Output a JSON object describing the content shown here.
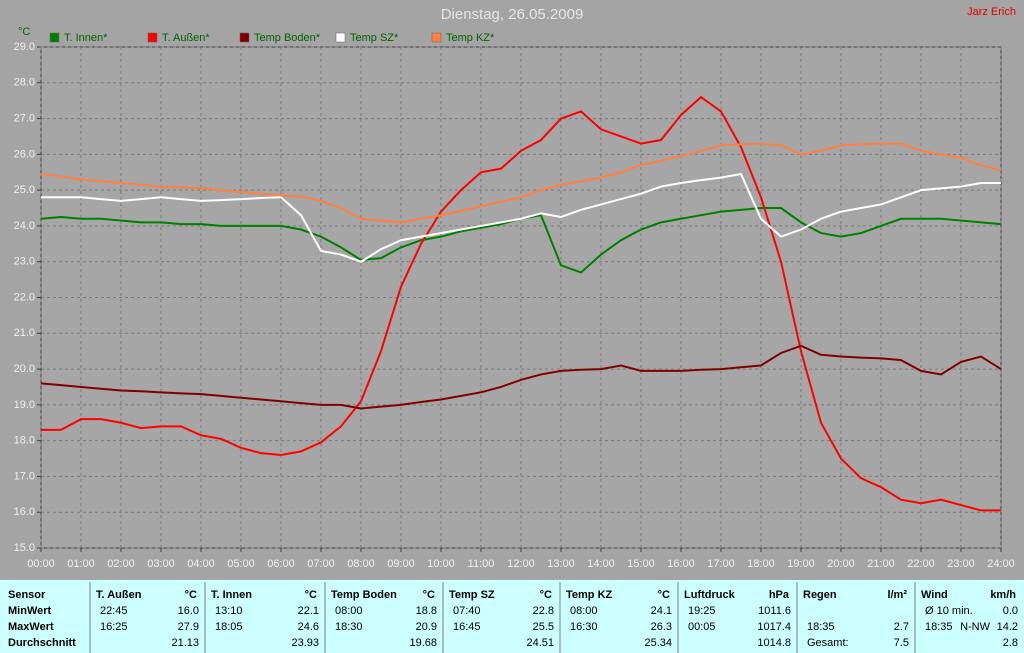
{
  "chart_data": {
    "type": "line",
    "title": "Dienstag, 26.05.2009",
    "author": "Jarz Erich",
    "y_unit": "°C",
    "x": [
      0,
      0.5,
      1,
      1.5,
      2,
      2.5,
      3,
      3.5,
      4,
      4.5,
      5,
      5.5,
      6,
      6.5,
      7,
      7.5,
      8,
      8.5,
      9,
      9.5,
      10,
      10.5,
      11,
      11.5,
      12,
      12.5,
      13,
      13.5,
      14,
      14.5,
      15,
      15.5,
      16,
      16.5,
      17,
      17.5,
      18,
      18.5,
      19,
      19.5,
      20,
      20.5,
      21,
      21.5,
      22,
      22.5,
      23,
      23.5,
      24
    ],
    "xlim": [
      0,
      24
    ],
    "xticks": [
      {
        "value": 0,
        "label": "00:00"
      },
      {
        "value": 1,
        "label": "01:00"
      },
      {
        "value": 2,
        "label": "02:00"
      },
      {
        "value": 3,
        "label": "03:00"
      },
      {
        "value": 4,
        "label": "04:00"
      },
      {
        "value": 5,
        "label": "05:00"
      },
      {
        "value": 6,
        "label": "06:00"
      },
      {
        "value": 7,
        "label": "07:00"
      },
      {
        "value": 8,
        "label": "08:00"
      },
      {
        "value": 9,
        "label": "09:00"
      },
      {
        "value": 10,
        "label": "10:00"
      },
      {
        "value": 11,
        "label": "11:00"
      },
      {
        "value": 12,
        "label": "12:00"
      },
      {
        "value": 13,
        "label": "13:00"
      },
      {
        "value": 14,
        "label": "14:00"
      },
      {
        "value": 15,
        "label": "15:00"
      },
      {
        "value": 16,
        "label": "16:00"
      },
      {
        "value": 17,
        "label": "17:00"
      },
      {
        "value": 18,
        "label": "18:00"
      },
      {
        "value": 19,
        "label": "19:00"
      },
      {
        "value": 20,
        "label": "20:00"
      },
      {
        "value": 21,
        "label": "21:00"
      },
      {
        "value": 22,
        "label": "22:00"
      },
      {
        "value": 23,
        "label": "23:00"
      },
      {
        "value": 24,
        "label": "24:00"
      }
    ],
    "ylim": [
      15,
      29
    ],
    "yticks": [
      {
        "value": 15,
        "label": "15.0"
      },
      {
        "value": 16,
        "label": "16.0"
      },
      {
        "value": 17,
        "label": "17.0"
      },
      {
        "value": 18,
        "label": "18.0"
      },
      {
        "value": 19,
        "label": "19.0"
      },
      {
        "value": 20,
        "label": "20.0"
      },
      {
        "value": 21,
        "label": "21.0"
      },
      {
        "value": 22,
        "label": "22.0"
      },
      {
        "value": 23,
        "label": "23.0"
      },
      {
        "value": 24,
        "label": "24.0"
      },
      {
        "value": 25,
        "label": "25.0"
      },
      {
        "value": 26,
        "label": "26.0"
      },
      {
        "value": 27,
        "label": "27.0"
      },
      {
        "value": 28,
        "label": "28.0"
      },
      {
        "value": 29,
        "label": "29.0"
      }
    ],
    "grid": true,
    "series": [
      {
        "name": "T. Innen*",
        "color": "#008000",
        "values": [
          24.2,
          24.25,
          24.2,
          24.2,
          24.15,
          24.1,
          24.1,
          24.05,
          24.05,
          24.0,
          24.0,
          24.0,
          24.0,
          23.9,
          23.7,
          23.4,
          23.05,
          23.1,
          23.4,
          23.6,
          23.7,
          23.85,
          23.95,
          24.05,
          24.2,
          24.3,
          22.9,
          22.7,
          23.2,
          23.6,
          23.9,
          24.1,
          24.2,
          24.3,
          24.4,
          24.45,
          24.5,
          24.5,
          24.1,
          23.8,
          23.7,
          23.8,
          24.0,
          24.2,
          24.2,
          24.2,
          24.15,
          24.1,
          24.05
        ]
      },
      {
        "name": "T. Außen*",
        "color": "#ff0000",
        "values": [
          18.3,
          18.3,
          18.6,
          18.6,
          18.5,
          18.35,
          18.4,
          18.4,
          18.15,
          18.05,
          17.8,
          17.65,
          17.6,
          17.7,
          17.95,
          18.4,
          19.1,
          20.5,
          22.3,
          23.5,
          24.4,
          25.0,
          25.5,
          25.6,
          26.1,
          26.4,
          27.0,
          27.2,
          26.7,
          26.5,
          26.3,
          26.4,
          27.1,
          27.6,
          27.2,
          26.2,
          24.8,
          23.0,
          20.5,
          18.5,
          17.5,
          16.95,
          16.7,
          16.35,
          16.25,
          16.35,
          16.2,
          16.05,
          16.05
        ]
      },
      {
        "name": "Temp Boden*",
        "color": "#800000",
        "values": [
          19.6,
          19.55,
          19.5,
          19.45,
          19.4,
          19.38,
          19.35,
          19.32,
          19.3,
          19.25,
          19.2,
          19.15,
          19.1,
          19.05,
          19.0,
          19.0,
          18.9,
          18.95,
          19.0,
          19.08,
          19.15,
          19.25,
          19.35,
          19.5,
          19.7,
          19.85,
          19.95,
          19.98,
          20.0,
          20.1,
          19.95,
          19.95,
          19.95,
          19.98,
          20.0,
          20.05,
          20.1,
          20.45,
          20.65,
          20.4,
          20.35,
          20.32,
          20.3,
          20.25,
          19.95,
          19.85,
          20.2,
          20.35,
          20.0
        ]
      },
      {
        "name": "Temp SZ*",
        "color": "#ffffff",
        "values": [
          24.8,
          24.8,
          24.8,
          24.75,
          24.7,
          24.75,
          24.8,
          24.75,
          24.7,
          24.72,
          24.75,
          24.78,
          24.8,
          24.3,
          23.3,
          23.2,
          23.0,
          23.35,
          23.6,
          23.7,
          23.8,
          23.9,
          24.0,
          24.1,
          24.2,
          24.35,
          24.25,
          24.45,
          24.6,
          24.75,
          24.9,
          25.1,
          25.2,
          25.28,
          25.35,
          25.45,
          24.2,
          23.7,
          23.9,
          24.2,
          24.4,
          24.5,
          24.6,
          24.8,
          25.0,
          25.05,
          25.1,
          25.2,
          25.2
        ]
      },
      {
        "name": "Temp KZ*",
        "color": "#ff8040",
        "values": [
          25.45,
          25.38,
          25.3,
          25.25,
          25.2,
          25.15,
          25.1,
          25.08,
          25.05,
          25.0,
          24.95,
          24.9,
          24.85,
          24.82,
          24.7,
          24.5,
          24.2,
          24.15,
          24.1,
          24.2,
          24.3,
          24.42,
          24.55,
          24.68,
          24.8,
          25.0,
          25.15,
          25.25,
          25.35,
          25.5,
          25.7,
          25.82,
          25.95,
          26.1,
          26.25,
          26.28,
          26.3,
          26.25,
          26.0,
          26.1,
          26.25,
          26.28,
          26.3,
          26.3,
          26.1,
          26.0,
          25.9,
          25.7,
          25.55
        ]
      }
    ]
  },
  "table": {
    "label_header": "Sensor",
    "row_labels": [
      "MinWert",
      "MaxWert",
      "Durchschnitt"
    ],
    "columns": [
      {
        "name": "T. Außen",
        "unit": "°C",
        "rows": [
          [
            "22:45",
            "16.0"
          ],
          [
            "16:25",
            "27.9"
          ],
          [
            "21.13"
          ]
        ]
      },
      {
        "name": "T. Innen",
        "unit": "°C",
        "rows": [
          [
            "13:10",
            "22.1"
          ],
          [
            "18:05",
            "24.6"
          ],
          [
            "23.93"
          ]
        ]
      },
      {
        "name": "Temp Boden",
        "unit": "°C",
        "rows": [
          [
            "08:00",
            "18.8"
          ],
          [
            "18:30",
            "20.9"
          ],
          [
            "19.68"
          ]
        ]
      },
      {
        "name": "Temp SZ",
        "unit": "°C",
        "rows": [
          [
            "07:40",
            "22.8"
          ],
          [
            "16:45",
            "25.5"
          ],
          [
            "24.51"
          ]
        ]
      },
      {
        "name": "Temp KZ",
        "unit": "°C",
        "rows": [
          [
            "08:00",
            "24.1"
          ],
          [
            "16:30",
            "26.3"
          ],
          [
            "25.34"
          ]
        ]
      },
      {
        "name": "Luftdruck",
        "unit": "hPa",
        "rows": [
          [
            "19:25",
            "1011.6"
          ],
          [
            "00:05",
            "1017.4"
          ],
          [
            "1014.8"
          ]
        ]
      },
      {
        "name": "Regen",
        "unit": "l/m²",
        "rows": [
          [],
          [
            "18:35",
            "2.7"
          ],
          [
            "Gesamt:",
            "7.5"
          ]
        ]
      },
      {
        "name": "Wind",
        "unit": "km/h",
        "rows": [
          [
            "Ø 10 min.",
            "0.0"
          ],
          [
            "18:35",
            "N-NW",
            "14.2"
          ],
          [
            "2.8"
          ]
        ]
      }
    ]
  }
}
